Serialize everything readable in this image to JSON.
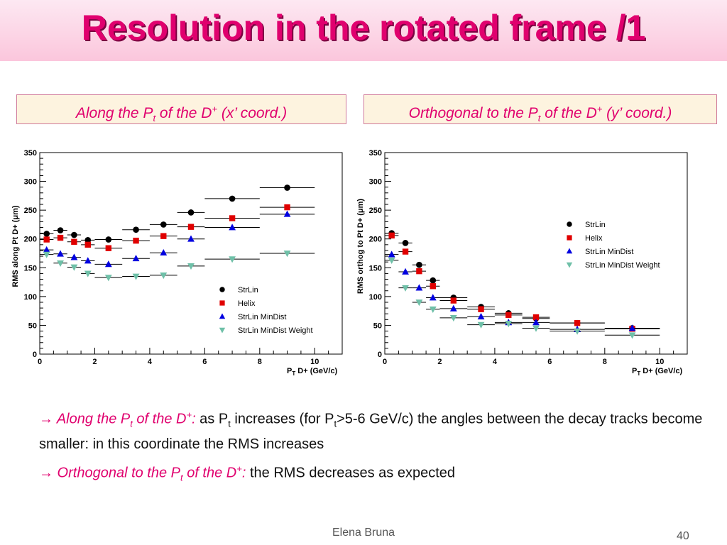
{
  "title": "Resolution in the rotated frame /1",
  "captions": {
    "left": {
      "pre": "Along the P",
      "sub": "t",
      "mid": " of the D",
      "sup": "+",
      "post": " (x’ coord.)"
    },
    "right": {
      "pre": "Orthogonal to the P",
      "sub": "t",
      "mid": " of the D",
      "sup": "+",
      "post": " (y’ coord.)"
    }
  },
  "notes": {
    "n1": {
      "arrow": "→",
      "hl_pre": " Along the P",
      "hl_sub": "t",
      "hl_mid": " of the D",
      "hl_sup": "+",
      "colon": ":",
      "t1": " as P",
      "t1_sub": "t",
      "t2": " increases (for P",
      "t2_sub": "t",
      "t3": ">5-6 GeV/c)  the angles between the decay tracks become smaller: in this coordinate the RMS increases"
    },
    "n2": {
      "arrow": "→",
      "hl_pre": " Orthogonal to the P",
      "hl_sub": "t",
      "hl_mid": " of the D",
      "hl_sup": "+",
      "colon": ":",
      "t1": " the RMS decreases as expected"
    }
  },
  "footer": {
    "author": "Elena Bruna",
    "page": "40"
  },
  "chart_data": [
    {
      "type": "scatter",
      "ylabel": "RMS along Pt D+ (μm)",
      "xlabel_main": "P",
      "xlabel_sub": "T",
      "xlabel_rest": " D+ (GeV/c)",
      "xlim": [
        0,
        11
      ],
      "ylim": [
        0,
        350
      ],
      "xticks": [
        0,
        2,
        4,
        6,
        8,
        10
      ],
      "yticks": [
        0,
        50,
        100,
        150,
        200,
        250,
        300,
        350
      ],
      "legend_position": "bottom-right",
      "bins": [
        {
          "x": 0.25,
          "lo": 0,
          "hi": 0.5
        },
        {
          "x": 0.75,
          "lo": 0.5,
          "hi": 1
        },
        {
          "x": 1.25,
          "lo": 1,
          "hi": 1.5
        },
        {
          "x": 1.75,
          "lo": 1.5,
          "hi": 2
        },
        {
          "x": 2.5,
          "lo": 2,
          "hi": 3
        },
        {
          "x": 3.5,
          "lo": 3,
          "hi": 4
        },
        {
          "x": 4.5,
          "lo": 4,
          "hi": 5
        },
        {
          "x": 5.5,
          "lo": 5,
          "hi": 6
        },
        {
          "x": 7,
          "lo": 6,
          "hi": 8
        },
        {
          "x": 9,
          "lo": 8,
          "hi": 10
        }
      ],
      "series": [
        {
          "name": "StrLin",
          "marker": "circle",
          "color": "#000000",
          "values": [
            209,
            215,
            207,
            198,
            199,
            216,
            225,
            246,
            270,
            289
          ]
        },
        {
          "name": "Helix",
          "marker": "square",
          "color": "#e00000",
          "values": [
            199,
            202,
            195,
            190,
            184,
            197,
            205,
            221,
            236,
            255
          ]
        },
        {
          "name": "StrLin MinDist",
          "marker": "triangle-up",
          "color": "#0000e0",
          "values": [
            181,
            174,
            168,
            162,
            156,
            166,
            176,
            200,
            220,
            243
          ]
        },
        {
          "name": "StrLin MinDist Weight",
          "marker": "triangle-down",
          "color": "#6fc0a8",
          "values": [
            173,
            158,
            151,
            140,
            133,
            135,
            137,
            153,
            165,
            175
          ]
        }
      ]
    },
    {
      "type": "scatter",
      "ylabel": "RMS orthog to Pt D+ (μm)",
      "xlabel_main": "P",
      "xlabel_sub": "T",
      "xlabel_rest": " D+ (GeV/c)",
      "xlim": [
        0,
        11
      ],
      "ylim": [
        0,
        350
      ],
      "xticks": [
        0,
        2,
        4,
        6,
        8,
        10
      ],
      "yticks": [
        0,
        50,
        100,
        150,
        200,
        250,
        300,
        350
      ],
      "legend_position": "top-right",
      "bins": [
        {
          "x": 0.25,
          "lo": 0,
          "hi": 0.5
        },
        {
          "x": 0.75,
          "lo": 0.5,
          "hi": 1
        },
        {
          "x": 1.25,
          "lo": 1,
          "hi": 1.5
        },
        {
          "x": 1.75,
          "lo": 1.5,
          "hi": 2
        },
        {
          "x": 2.5,
          "lo": 2,
          "hi": 3
        },
        {
          "x": 3.5,
          "lo": 3,
          "hi": 4
        },
        {
          "x": 4.5,
          "lo": 4,
          "hi": 5
        },
        {
          "x": 5.5,
          "lo": 5,
          "hi": 6
        },
        {
          "x": 7,
          "lo": 6,
          "hi": 8
        },
        {
          "x": 9,
          "lo": 8,
          "hi": 10
        }
      ],
      "series": [
        {
          "name": "StrLin",
          "marker": "circle",
          "color": "#000000",
          "values": [
            210,
            193,
            155,
            128,
            98,
            82,
            71,
            62,
            54,
            45
          ]
        },
        {
          "name": "Helix",
          "marker": "square",
          "color": "#e00000",
          "values": [
            206,
            178,
            144,
            118,
            93,
            78,
            68,
            64,
            54,
            44
          ]
        },
        {
          "name": "StrLin MinDist",
          "marker": "triangle-up",
          "color": "#0000e0",
          "values": [
            173,
            143,
            115,
            98,
            79,
            65,
            55,
            55,
            43,
            45
          ]
        },
        {
          "name": "StrLin MinDist Weight",
          "marker": "triangle-down",
          "color": "#6fc0a8",
          "values": [
            163,
            115,
            90,
            78,
            63,
            51,
            53,
            45,
            40,
            33
          ]
        }
      ]
    }
  ]
}
